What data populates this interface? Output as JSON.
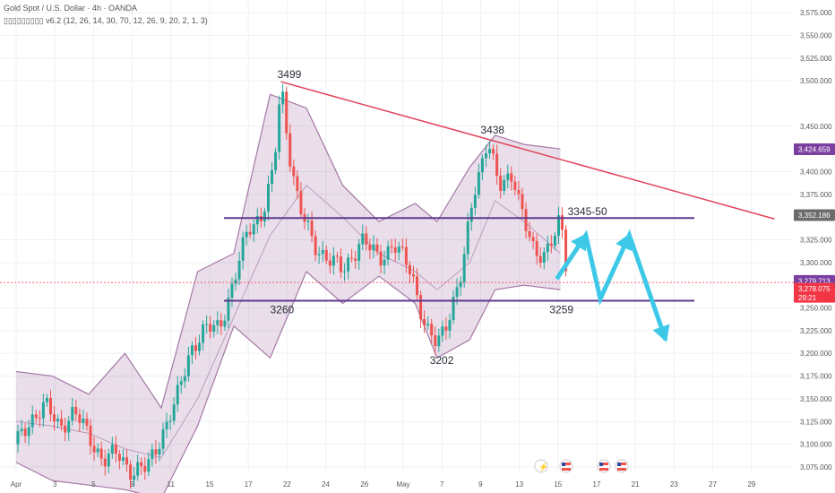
{
  "header": {
    "symbol": "Gold Spot / U.S. Dollar · 4h · OANDA",
    "indicator": "▯▯▯▯▯▯▯▯▯ v6.2 (12, 26, 14, 30, 70, 12, 26, 9, 20, 2, 1, 3)"
  },
  "colors": {
    "bull": "#26a69a",
    "bear": "#ef5350",
    "band": "#9c6b9e",
    "resistance": "#e0435a",
    "level": "#5e3a8f",
    "arrow": "#3ec8e8",
    "price_tag": "#f23645",
    "tag_purple": "#7b3fa0",
    "grid": "#eef0f3"
  },
  "chart_data": {
    "type": "candlestick",
    "title": "",
    "xlabel": "",
    "ylabel": "",
    "ylim": [
      3070,
      3585
    ],
    "y_ticks": [
      "3,575.000",
      "3,550.000",
      "3,525.000",
      "3,500.000",
      "3,450.000",
      "3,400.000",
      "3,375.000",
      "3,325.000",
      "3,300.000",
      "3,250.000",
      "3,225.000",
      "3,200.000",
      "3,175.000",
      "3,150.000",
      "3,125.000",
      "3,100.000",
      "3,075.000"
    ],
    "x_ticks": [
      "Apr",
      "3",
      "5",
      "9",
      "11",
      "15",
      "17",
      "22",
      "24",
      "26",
      "May",
      "7",
      "9",
      "13",
      "15",
      "17",
      "21",
      "23",
      "27",
      "29"
    ],
    "price_tags": [
      {
        "label": "3,424.659",
        "value": 3424.659,
        "color": "#7b3fa0"
      },
      {
        "label": "3,352.186",
        "value": 3352.186,
        "color": "#6b6b6b"
      },
      {
        "label": "3,279.713",
        "value": 3279.713,
        "color": "#7b3fa0"
      },
      {
        "label": "3,278.075",
        "value": 3278.075,
        "color": "#f23645",
        "sub": "29:21"
      }
    ],
    "levels": [
      {
        "name": "3345-50",
        "value": 3349
      },
      {
        "name": "3260",
        "value": 3258
      }
    ],
    "trendline": {
      "from": [
        7.3,
        3499
      ],
      "to": [
        20.9,
        3348
      ]
    },
    "annotations": [
      {
        "text": "3499",
        "x": 7.2,
        "y": 3499
      },
      {
        "text": "3438",
        "x": 12.8,
        "y": 3438
      },
      {
        "text": "3345-50",
        "x": 15.2,
        "y": 3349
      },
      {
        "text": "3260",
        "x": 7.0,
        "y": 3258
      },
      {
        "text": "3259",
        "x": 14.7,
        "y": 3258
      },
      {
        "text": "3202",
        "x": 11.4,
        "y": 3202
      }
    ],
    "projection": [
      [
        14.9,
        3282
      ],
      [
        15.7,
        3330
      ],
      [
        16.1,
        3260
      ],
      [
        16.9,
        3330
      ],
      [
        17.9,
        3215
      ]
    ],
    "price_series": [
      [
        0,
        3100
      ],
      [
        0.4,
        3128
      ],
      [
        0.8,
        3142
      ],
      [
        1.2,
        3120
      ],
      [
        1.6,
        3135
      ],
      [
        2.0,
        3110
      ],
      [
        2.4,
        3082
      ],
      [
        2.8,
        3090
      ],
      [
        3.2,
        3070
      ],
      [
        3.6,
        3073
      ],
      [
        4.0,
        3110
      ],
      [
        4.4,
        3145
      ],
      [
        4.8,
        3205
      ],
      [
        5.2,
        3225
      ],
      [
        5.6,
        3230
      ],
      [
        6.0,
        3278
      ],
      [
        6.4,
        3338
      ],
      [
        6.8,
        3355
      ],
      [
        7.1,
        3400
      ],
      [
        7.3,
        3499
      ],
      [
        7.5,
        3430
      ],
      [
        7.8,
        3360
      ],
      [
        8.2,
        3320
      ],
      [
        8.6,
        3305
      ],
      [
        9.0,
        3290
      ],
      [
        9.5,
        3325
      ],
      [
        10.0,
        3305
      ],
      [
        10.4,
        3320
      ],
      [
        10.9,
        3290
      ],
      [
        11.3,
        3225
      ],
      [
        11.6,
        3208
      ],
      [
        11.9,
        3240
      ],
      [
        12.3,
        3290
      ],
      [
        12.6,
        3375
      ],
      [
        13.0,
        3438
      ],
      [
        13.3,
        3380
      ],
      [
        13.7,
        3400
      ],
      [
        14.0,
        3345
      ],
      [
        14.3,
        3305
      ],
      [
        14.6,
        3315
      ],
      [
        15.0,
        3345
      ],
      [
        15.2,
        3278
      ]
    ],
    "band_center": [
      [
        0,
        3125
      ],
      [
        1,
        3120
      ],
      [
        2,
        3112
      ],
      [
        3,
        3095
      ],
      [
        4,
        3085
      ],
      [
        5,
        3150
      ],
      [
        6,
        3240
      ],
      [
        7,
        3330
      ],
      [
        8,
        3385
      ],
      [
        9,
        3350
      ],
      [
        10,
        3310
      ],
      [
        11,
        3290
      ],
      [
        11.6,
        3270
      ],
      [
        12.5,
        3300
      ],
      [
        13.2,
        3368
      ],
      [
        14,
        3345
      ],
      [
        15,
        3310
      ]
    ],
    "band_upper": [
      [
        0,
        3180
      ],
      [
        1,
        3175
      ],
      [
        2,
        3155
      ],
      [
        3,
        3200
      ],
      [
        4,
        3140
      ],
      [
        5,
        3290
      ],
      [
        6,
        3310
      ],
      [
        7,
        3485
      ],
      [
        8,
        3470
      ],
      [
        9,
        3385
      ],
      [
        10,
        3345
      ],
      [
        11,
        3365
      ],
      [
        11.6,
        3345
      ],
      [
        12.5,
        3405
      ],
      [
        13.2,
        3440
      ],
      [
        14,
        3430
      ],
      [
        15,
        3425
      ]
    ],
    "band_lower": [
      [
        0,
        3080
      ],
      [
        1,
        3060
      ],
      [
        2,
        3055
      ],
      [
        3,
        3050
      ],
      [
        4,
        3040
      ],
      [
        5,
        3120
      ],
      [
        6,
        3230
      ],
      [
        7,
        3195
      ],
      [
        8,
        3290
      ],
      [
        9,
        3255
      ],
      [
        10,
        3285
      ],
      [
        11,
        3255
      ],
      [
        11.6,
        3195
      ],
      [
        12.5,
        3215
      ],
      [
        13.2,
        3270
      ],
      [
        14,
        3275
      ],
      [
        15,
        3270
      ]
    ]
  }
}
